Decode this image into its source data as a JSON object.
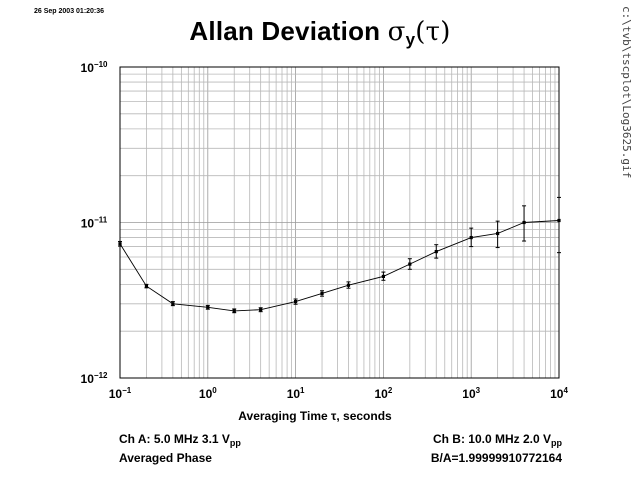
{
  "timestamp": "26 Sep 2003 01:20:36",
  "title": {
    "text": "Allan Deviation ",
    "symbol": "σ",
    "subscript": "y",
    "arg": "(τ)"
  },
  "file_path": "c:\\tvb\\tscplot\\Log3625.gif",
  "footer": {
    "ch_a_prefix": "Ch A: 5.0 MHz 3.1 V",
    "ch_a_sub": "pp",
    "mode": "Averaged Phase",
    "ch_b_prefix": "Ch B: 10.0 MHz 2.0 V",
    "ch_b_sub": "pp",
    "ratio": "B/A=1.99999910772164"
  },
  "chart_data": {
    "type": "line",
    "title": "Allan Deviation σy(τ)",
    "xlabel": "Averaging Time τ, seconds",
    "ylabel": "",
    "x_scale": "log",
    "y_scale": "log",
    "xlim": [
      0.1,
      10000
    ],
    "ylim": [
      1e-12,
      1e-10
    ],
    "grid": true,
    "x_ticks": [
      {
        "value": 0.1,
        "mantissa": "10",
        "exp": "−1"
      },
      {
        "value": 1,
        "mantissa": "10",
        "exp": "0"
      },
      {
        "value": 10,
        "mantissa": "10",
        "exp": "1"
      },
      {
        "value": 100,
        "mantissa": "10",
        "exp": "2"
      },
      {
        "value": 1000,
        "mantissa": "10",
        "exp": "3"
      },
      {
        "value": 10000,
        "mantissa": "10",
        "exp": "4"
      }
    ],
    "y_ticks": [
      {
        "value": 1e-12,
        "mantissa": "10",
        "exp": "−12"
      },
      {
        "value": 1e-11,
        "mantissa": "10",
        "exp": "−11"
      },
      {
        "value": 1e-10,
        "mantissa": "10",
        "exp": "−10"
      }
    ],
    "series": [
      {
        "x": [
          0.1,
          0.2,
          0.4,
          1,
          2,
          4,
          10,
          20,
          40,
          100,
          200,
          400,
          1000,
          2000,
          4000,
          10000
        ],
        "y": [
          7.3e-12,
          3.9e-12,
          3e-12,
          2.85e-12,
          2.7e-12,
          2.75e-12,
          3.1e-12,
          3.5e-12,
          3.95e-12,
          4.5e-12,
          5.4e-12,
          6.5e-12,
          8e-12,
          8.5e-12,
          1e-11,
          1.03e-11
        ],
        "err_low": [
          7.05e-12,
          3.8e-12,
          2.92e-12,
          2.77e-12,
          2.63e-12,
          2.67e-12,
          2.98e-12,
          3.36e-12,
          3.78e-12,
          4.25e-12,
          5e-12,
          5.9e-12,
          7e-12,
          6.9e-12,
          7.6e-12,
          6.4e-12
        ],
        "err_high": [
          7.55e-12,
          4e-12,
          3.1e-12,
          2.93e-12,
          2.78e-12,
          2.83e-12,
          3.22e-12,
          3.64e-12,
          4.15e-12,
          4.8e-12,
          5.85e-12,
          7.2e-12,
          9.2e-12,
          1.02e-11,
          1.28e-11,
          1.45e-11
        ]
      }
    ]
  }
}
